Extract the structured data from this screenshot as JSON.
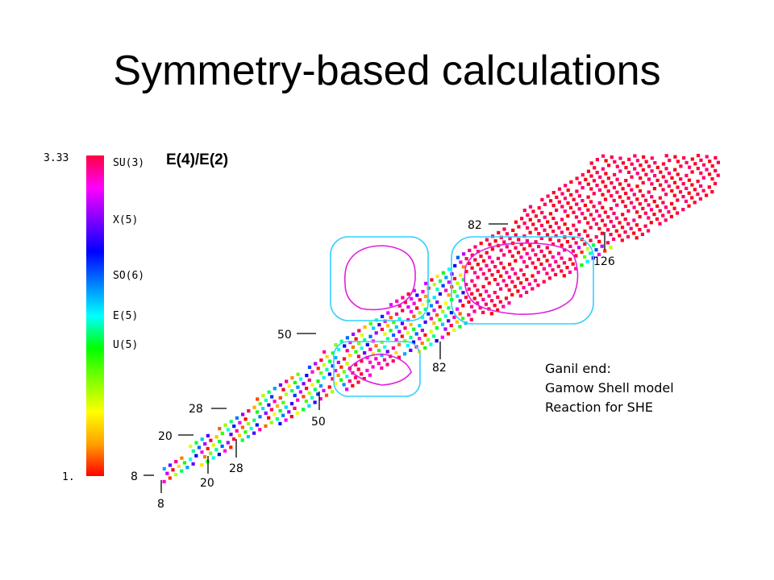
{
  "slide": {
    "title": "Symmetry-based calculations",
    "note_lines": [
      "Ganil end:",
      "Gamow Shell model",
      "Reaction for SHE"
    ]
  },
  "chart_data": {
    "type": "heatmap",
    "title": "E(4)/E(2)",
    "color_scale": {
      "min_label": "1.",
      "max_label": "3.33",
      "range": [
        1.0,
        3.33
      ],
      "colors": [
        "#ff0000",
        "#ffa000",
        "#ffff00",
        "#80ff00",
        "#00ff00",
        "#00ffff",
        "#0080ff",
        "#0000ff",
        "#8000ff",
        "#ff00ff",
        "#ff0040"
      ],
      "symmetry_limits": [
        {
          "label": "SU(3)",
          "value": 3.33
        },
        {
          "label": "X(5)",
          "value": 2.91
        },
        {
          "label": "SO(6)",
          "value": 2.5
        },
        {
          "label": "E(5)",
          "value": 2.2
        },
        {
          "label": "U(5)",
          "value": 2.0
        }
      ]
    },
    "magic_numbers_horizontal": [
      "8",
      "20",
      "28",
      "50",
      "82"
    ],
    "magic_numbers_vertical": [
      "8",
      "20",
      "28",
      "50",
      "82",
      "126"
    ]
  }
}
